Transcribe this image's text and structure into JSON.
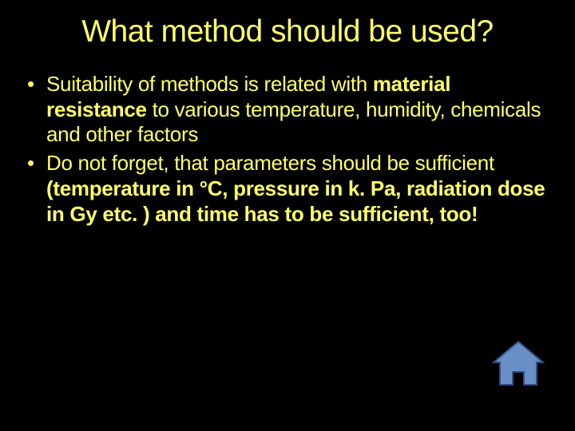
{
  "slide": {
    "background_color": "#000000",
    "text_color": "#ffff66",
    "title": "What method should be used?",
    "title_fontsize": 39,
    "bullets": [
      {
        "segments": [
          {
            "text": "Suitability of methods is related with ",
            "bold": false
          },
          {
            "text": "material resistance",
            "bold": true
          },
          {
            "text": " to various temperature, humidity, chemicals and other factors",
            "bold": false
          }
        ]
      },
      {
        "segments": [
          {
            "text": "Do not forget, that parameters should be sufficient ",
            "bold": false
          },
          {
            "text": "(temperature in °C, pressure in k. Pa, radiation dose in Gy etc. ) and time has to be sufficient, too!",
            "bold": true
          }
        ]
      }
    ],
    "bullet_fontsize": 26,
    "home_icon": {
      "fill_color": "#6a8fc7",
      "stroke_color": "#2f4e85",
      "stroke_width": 2
    }
  }
}
